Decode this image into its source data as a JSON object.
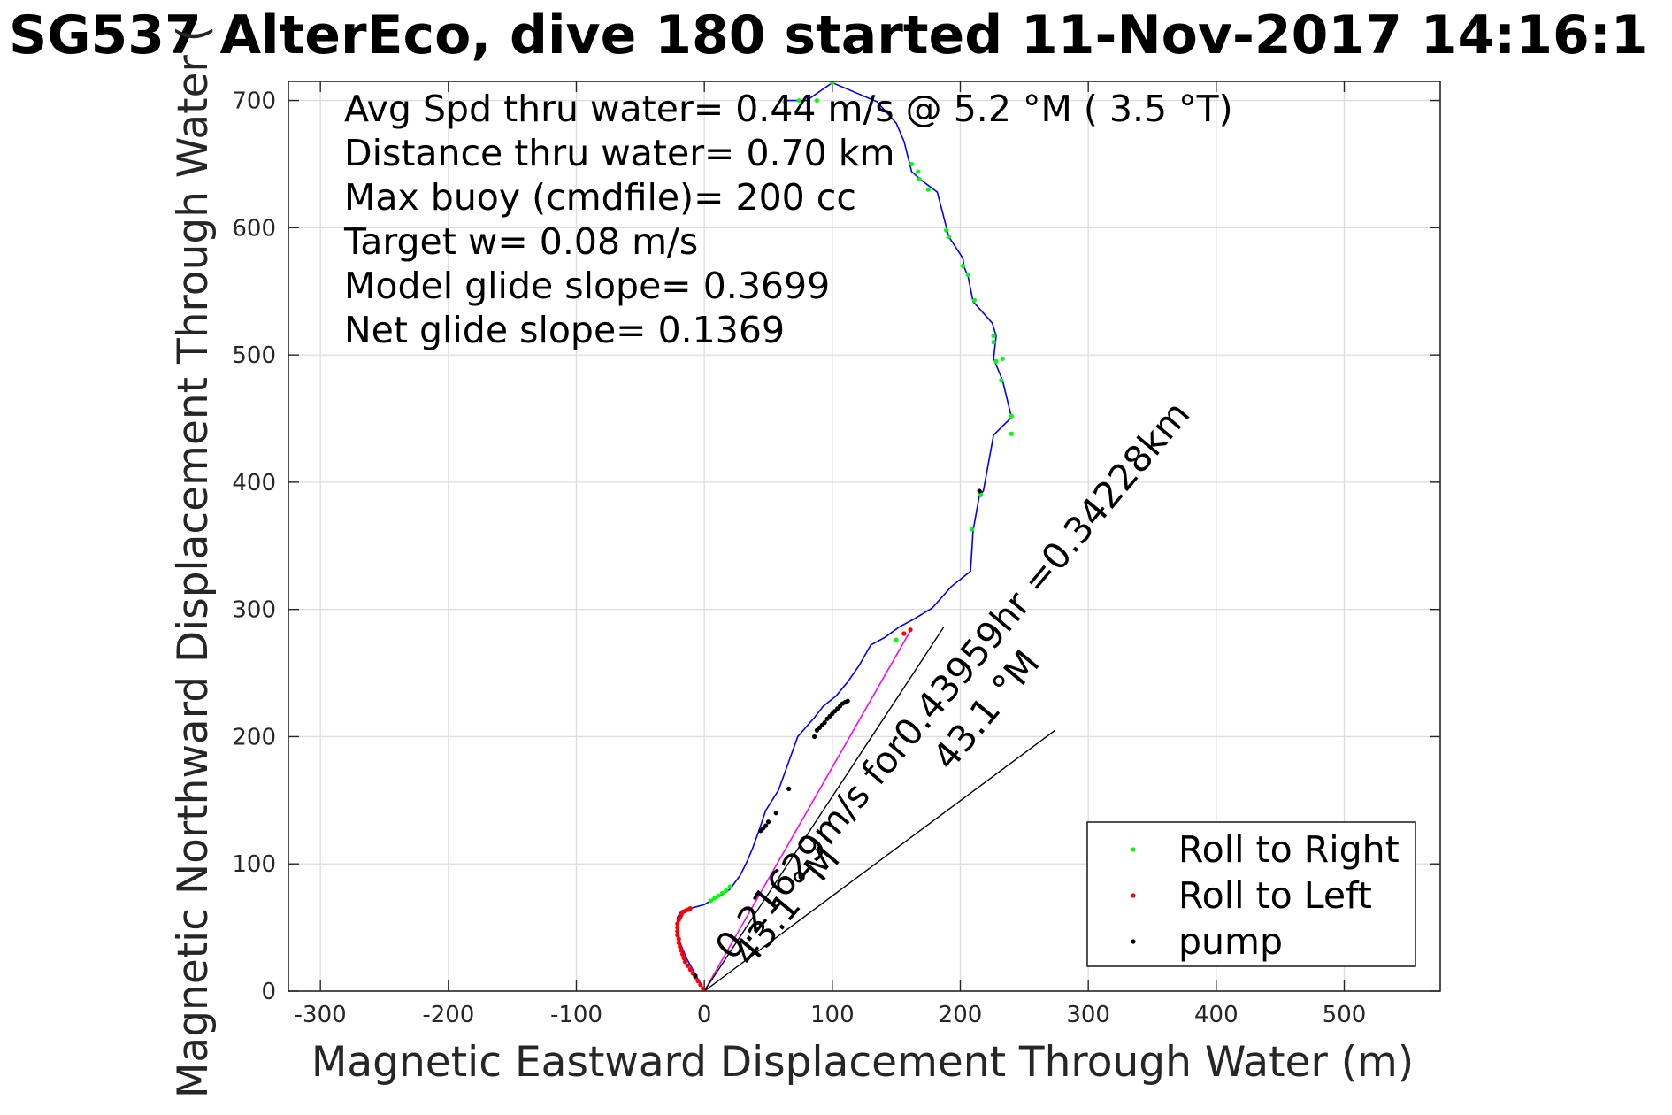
{
  "chart_data": {
    "type": "scatter",
    "title": "SG537 AlterEco, dive 180 started 11-Nov-2017 14:16:1",
    "xlabel": "Magnetic Eastward Displacement Through Water (m)",
    "ylabel": "Magnetic Northward Displacement Through Water (",
    "xlim": [
      -325,
      575
    ],
    "ylim": [
      0,
      715
    ],
    "xticks": [
      -300,
      -200,
      -100,
      0,
      100,
      200,
      300,
      400,
      500
    ],
    "yticks": [
      0,
      100,
      200,
      300,
      400,
      500,
      600,
      700
    ],
    "xtick_labels": [
      "-300",
      "-200",
      "-100",
      "0",
      "100",
      "200",
      "300",
      "400",
      "500"
    ],
    "ytick_labels": [
      "0",
      "100",
      "200",
      "300",
      "400",
      "500",
      "600",
      "700"
    ],
    "grid": true,
    "legend_position": "bottom-right",
    "track": {
      "color": "#0000ff",
      "x": [
        0,
        -3,
        -8,
        -14,
        -19,
        -21,
        -21,
        -18,
        -11,
        0,
        5,
        13,
        20,
        28,
        33,
        38,
        43,
        48,
        58,
        73,
        86,
        93,
        103,
        112,
        121,
        130,
        141,
        152,
        163,
        178,
        193,
        208,
        210,
        215,
        218,
        226,
        240,
        233,
        226,
        228,
        225,
        210,
        206,
        203,
        202,
        191,
        182,
        170,
        162,
        156,
        150,
        135,
        100,
        80,
        63
      ],
      "y": [
        0,
        6,
        15,
        26,
        38,
        50,
        58,
        63,
        65,
        68,
        71,
        75,
        80,
        91,
        101,
        113,
        127,
        142,
        158,
        200,
        215,
        224,
        232,
        243,
        256,
        272,
        278,
        286,
        292,
        301,
        318,
        330,
        362,
        390,
        393,
        437,
        451,
        480,
        497,
        515,
        525,
        542,
        562,
        569,
        576,
        593,
        628,
        637,
        644,
        668,
        682,
        699,
        714,
        700,
        700
      ]
    },
    "series": [
      {
        "name": "Roll to Right",
        "color": "#00ff00",
        "x": [
          5,
          8,
          11,
          14,
          17,
          20,
          150,
          209,
          216,
          232,
          240,
          240,
          233,
          228,
          226,
          226,
          211,
          206,
          202,
          191,
          189,
          175,
          168,
          167,
          162,
          100,
          63,
          74,
          88
        ],
        "y": [
          71,
          73,
          75,
          77,
          79,
          82,
          276,
          363,
          390,
          480,
          438,
          452,
          497,
          495,
          510,
          515,
          543,
          563,
          570,
          593,
          598,
          630,
          638,
          644,
          650,
          714,
          699,
          700,
          700
        ]
      },
      {
        "name": "Roll to Left",
        "color": "#ff0000",
        "x": [
          -1,
          -3,
          -5,
          -7,
          -9,
          -11,
          -13,
          -15,
          -16,
          -17,
          -18,
          -19,
          -20,
          -20,
          -21,
          -21,
          -21,
          -21,
          -20,
          -19,
          -18,
          -17,
          -15,
          -13,
          -11,
          156,
          161
        ],
        "y": [
          2,
          5,
          8,
          11,
          14,
          17,
          20,
          23,
          26,
          29,
          32,
          35,
          38,
          41,
          44,
          47,
          50,
          53,
          56,
          58,
          60,
          62,
          63,
          64,
          65,
          281,
          284
        ]
      },
      {
        "name": "pump",
        "color": "#000000",
        "x": [
          -7,
          44,
          46,
          48,
          50,
          56,
          66,
          86,
          88,
          90,
          92,
          94,
          96,
          98,
          100,
          102,
          104,
          106,
          108,
          110,
          112,
          215
        ],
        "y": [
          12,
          126,
          128,
          130,
          133,
          140,
          159,
          200,
          205,
          207,
          209,
          211,
          214,
          216,
          218,
          220,
          222,
          224,
          226,
          227,
          228,
          393
        ]
      }
    ],
    "black_lines": [
      {
        "x": [
          0,
          187
        ],
        "y": [
          0,
          286
        ]
      },
      {
        "x": [
          0,
          274
        ],
        "y": [
          0,
          205
        ]
      }
    ],
    "magenta_line": {
      "color": "#ff00ff",
      "x": [
        0,
        162
      ],
      "y": [
        0,
        285
      ]
    },
    "annotations": [
      "Avg Spd thru water=  0.44 m/s @   5.2 °M (  3.5 °T)",
      "Distance thru water=  0.70 km",
      "Max buoy (cmdfile)= 200 cc",
      "Target w= 0.08 m/s",
      "Model glide slope= 0.3699",
      "Net glide slope= 0.1369"
    ],
    "rotated_labels": [
      {
        "text": "0.21629m/s for0.43959hr =0.34228km",
        "x": 22,
        "y": 23,
        "angle": 50
      },
      {
        "text": "43.1 °M",
        "x": 36,
        "y": 18,
        "angle": 50
      },
      {
        "text": "43.1 °M",
        "x": 192,
        "y": 172,
        "angle": 50
      }
    ]
  }
}
